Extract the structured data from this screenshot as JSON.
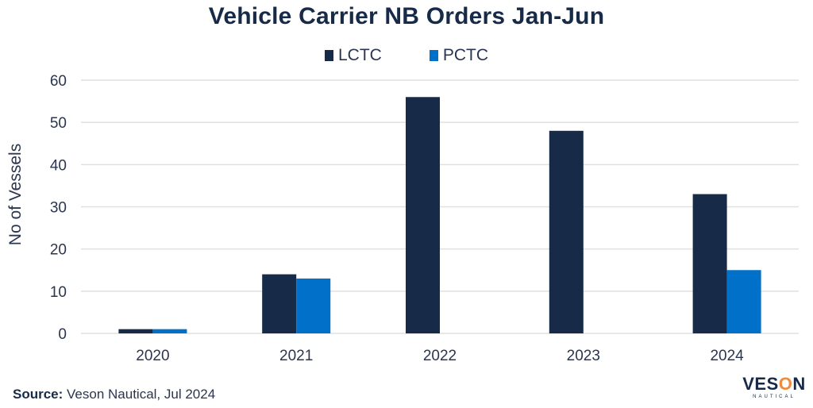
{
  "chart_data": {
    "type": "bar",
    "title": "Vehicle Carrier NB Orders Jan-Jun",
    "xlabel": "",
    "ylabel": "No of Vessels",
    "categories": [
      "2020",
      "2021",
      "2022",
      "2023",
      "2024"
    ],
    "series": [
      {
        "name": "LCTC",
        "color": "#172a47",
        "values": [
          1,
          14,
          56,
          48,
          33
        ]
      },
      {
        "name": "PCTC",
        "color": "#0070c8",
        "values": [
          1,
          13,
          0,
          0,
          15
        ]
      }
    ],
    "ylim": [
      0,
      60
    ],
    "yticks": [
      0,
      10,
      20,
      30,
      40,
      50,
      60
    ],
    "grid": true,
    "legend_position": "top-center"
  },
  "footer": {
    "source_label": "Source:",
    "source_text": " Veson Nautical, Jul 2024"
  },
  "logo": {
    "main_prefix": "VES",
    "main_o": "O",
    "main_suffix": "N",
    "sub": "NAUTICAL"
  }
}
